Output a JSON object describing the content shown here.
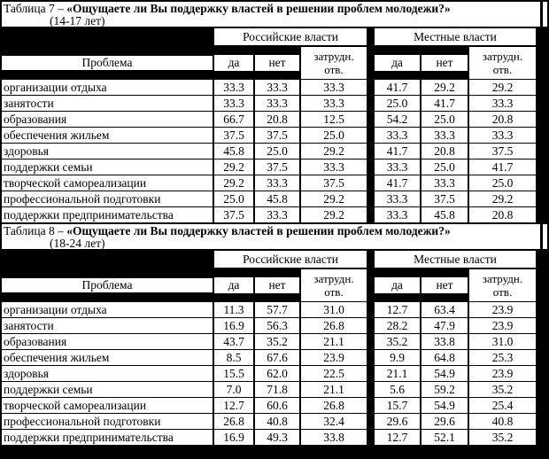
{
  "page": {
    "background_color": "#000000",
    "cell_color": "#ffffff",
    "text_color": "#000000"
  },
  "tables": [
    {
      "caption_prefix": "Таблица 7 – ",
      "caption_bold": "«Ощущаете ли Вы поддержку властей в решении проблем молодежи?»",
      "caption_sub": "(14-17 лет)",
      "problem_header": "Проблема",
      "group_russian": "Российские власти",
      "group_local": "Местные власти",
      "sub_headers": [
        "да",
        "нет",
        "затрудн. отв.",
        "да",
        "нет",
        "затрудн. отв."
      ],
      "rows": [
        {
          "label": "организации отдыха",
          "values": [
            "33.3",
            "33.3",
            "33.3",
            "41.7",
            "29.2",
            "29.2"
          ]
        },
        {
          "label": "занятости",
          "values": [
            "33.3",
            "33.3",
            "33.3",
            "25.0",
            "41.7",
            "33.3"
          ]
        },
        {
          "label": "образования",
          "values": [
            "66.7",
            "20.8",
            "12.5",
            "54.2",
            "25.0",
            "20.8"
          ]
        },
        {
          "label": "обеспечения жильем",
          "values": [
            "37.5",
            "37.5",
            "25.0",
            "33.3",
            "33.3",
            "33.3"
          ]
        },
        {
          "label": "здоровья",
          "values": [
            "45.8",
            "25.0",
            "29.2",
            "41.7",
            "20.8",
            "37.5"
          ]
        },
        {
          "label": "поддержки семьи",
          "values": [
            "29.2",
            "37.5",
            "33.3",
            "33.3",
            "25.0",
            "41.7"
          ]
        },
        {
          "label": "творческой самореализации",
          "values": [
            "29.2",
            "33.3",
            "37.5",
            "41.7",
            "33.3",
            "25.0"
          ]
        },
        {
          "label": "профессиональной подготовки",
          "values": [
            "25.0",
            "45.8",
            "29.2",
            "33.3",
            "37.5",
            "29.2"
          ]
        },
        {
          "label": "поддержки предпринимательства",
          "values": [
            "37.5",
            "33.3",
            "29.2",
            "33.3",
            "45.8",
            "20.8"
          ]
        }
      ]
    },
    {
      "caption_prefix": "Таблица 8 – ",
      "caption_bold": "«Ощущаете ли Вы поддержку властей в решении проблем молодежи?»",
      "caption_sub": "(18-24 лет)",
      "problem_header": "Проблема",
      "group_russian": "Российские власти",
      "group_local": "Местные власти",
      "sub_headers": [
        "да",
        "нет",
        "затрудн. отв.",
        "да",
        "нет",
        "затрудн. отв."
      ],
      "rows": [
        {
          "label": "организации отдыха",
          "values": [
            "11.3",
            "57.7",
            "31.0",
            "12.7",
            "63.4",
            "23.9"
          ]
        },
        {
          "label": "занятости",
          "values": [
            "16.9",
            "56.3",
            "26.8",
            "28.2",
            "47.9",
            "23.9"
          ]
        },
        {
          "label": "образования",
          "values": [
            "43.7",
            "35.2",
            "21.1",
            "35.2",
            "33.8",
            "31.0"
          ]
        },
        {
          "label": "обеспечения жильем",
          "values": [
            "8.5",
            "67.6",
            "23.9",
            "9.9",
            "64.8",
            "25.3"
          ]
        },
        {
          "label": "здоровья",
          "values": [
            "15.5",
            "62.0",
            "22.5",
            "21.1",
            "54.9",
            "23.9"
          ]
        },
        {
          "label": "поддержки семьи",
          "values": [
            "7.0",
            "71.8",
            "21.1",
            "5.6",
            "59.2",
            "35.2"
          ]
        },
        {
          "label": "творческой самореализации",
          "values": [
            "12.7",
            "60.6",
            "26.8",
            "15.7",
            "54.9",
            "25.4"
          ]
        },
        {
          "label": "профессиональной подготовки",
          "values": [
            "26.8",
            "40.8",
            "32.4",
            "29.6",
            "29.6",
            "40.8"
          ]
        },
        {
          "label": "поддержки предпринимательства",
          "values": [
            "16.9",
            "49.3",
            "33.8",
            "12.7",
            "52.1",
            "35.2"
          ]
        }
      ]
    }
  ]
}
